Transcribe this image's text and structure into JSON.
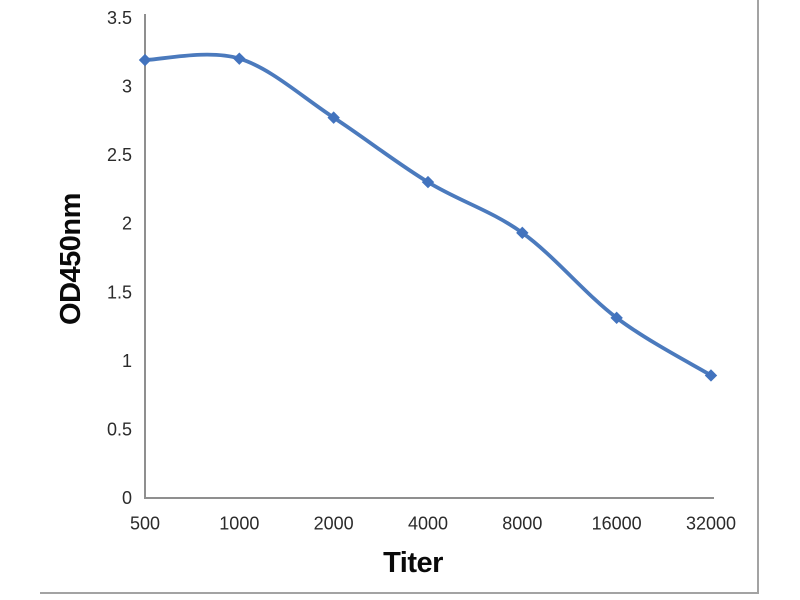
{
  "figure": {
    "background_color": "#ffffff",
    "frame_border_color": "#a3a3a3"
  },
  "chart_data": {
    "type": "line",
    "title": "",
    "xlabel": "Titer",
    "ylabel": "OD450nm",
    "categories": [
      "500",
      "1000",
      "2000",
      "4000",
      "8000",
      "16000",
      "32000"
    ],
    "values": [
      3.19,
      3.2,
      2.77,
      2.3,
      1.93,
      1.31,
      0.89
    ],
    "ylim": [
      0,
      3.5
    ],
    "ytick_step": 0.5,
    "grid": false,
    "legend": false,
    "smooth": true,
    "marker": "diamond",
    "line_color": "#4b7abd",
    "marker_color": "#4273be",
    "axis_color": "#8f8f8f",
    "tick_text_color": "#2b2b2b"
  }
}
